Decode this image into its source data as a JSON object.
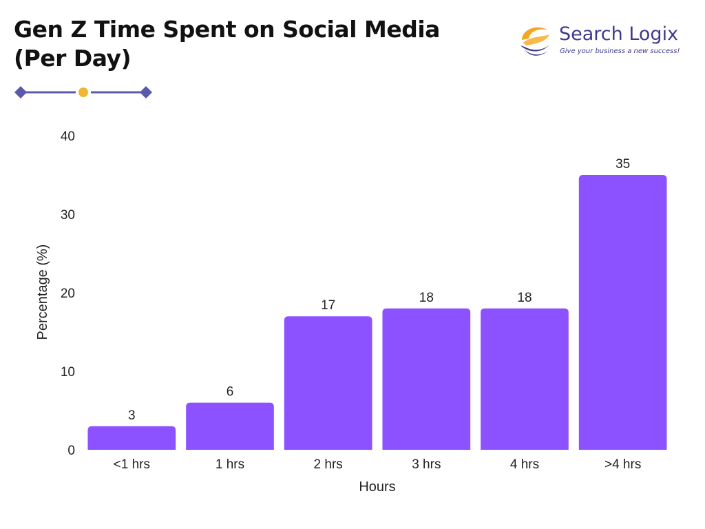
{
  "header": {
    "title_line1": "Gen Z Time Spent on Social Media",
    "title_line2": "(Per Day)"
  },
  "brand": {
    "name": "Search Logix",
    "tagline": "Give your business a new success!",
    "logo_icon": "swirl-logo-icon",
    "colors": {
      "primary": "#3d3a8c",
      "accent": "#f5a623"
    }
  },
  "decor": {
    "line_color": "#5a5aaa",
    "diamond_color": "#5a5aaa",
    "dot_color": "#f2b632"
  },
  "chart_data": {
    "type": "bar",
    "categories": [
      "<1 hrs",
      "1 hrs",
      "2 hrs",
      "3 hrs",
      "4 hrs",
      ">4 hrs"
    ],
    "values": [
      3,
      6,
      17,
      18,
      18,
      35
    ],
    "data_labels": [
      "3",
      "6",
      "17",
      "18",
      "18",
      "35"
    ],
    "xlabel": "Hours",
    "ylabel": "Percentage (%)",
    "ylim": [
      0,
      40
    ],
    "yticks": [
      0,
      10,
      20,
      30,
      40
    ],
    "grid": false,
    "bar_color": "#8c52ff"
  }
}
